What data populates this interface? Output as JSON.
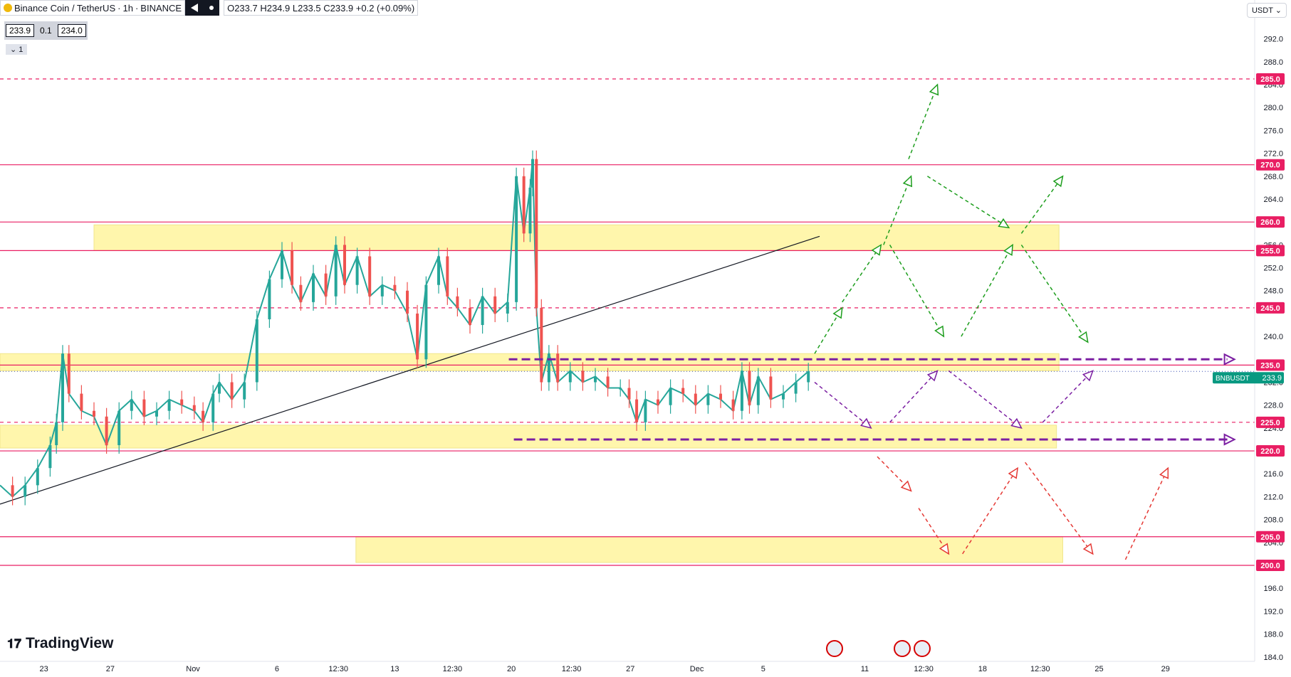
{
  "header": {
    "symbol": "Binance Coin / TetherUS",
    "interval": "1h",
    "exchange": "BINANCE",
    "ohlc": "O233.7 H234.9 L233.5 C233.9 +0.2 (+0.09%)",
    "bid": "233.9",
    "spread": "0.1",
    "ask": "234.0",
    "legend_count": "1",
    "currency": "USDT"
  },
  "logo_text": "TradingView",
  "chart_data": {
    "type": "line",
    "title": "Binance Coin / TetherUS",
    "ylim": [
      184,
      296
    ],
    "y_ticks": [
      "292.0",
      "288.0",
      "284.0",
      "280.0",
      "276.0",
      "272.0",
      "268.0",
      "264.0",
      "256.0",
      "252.0",
      "248.0",
      "240.0",
      "232.0",
      "228.0",
      "224.0",
      "216.0",
      "212.0",
      "208.0",
      "204.0",
      "196.0",
      "192.0",
      "188.0",
      "184.0"
    ],
    "x_ticks": [
      "23",
      "27",
      "Nov",
      "6",
      "12:30",
      "13",
      "12:30",
      "20",
      "12:30",
      "27",
      "Dec",
      "5",
      "11",
      "12:30",
      "18",
      "12:30",
      "25",
      "29"
    ],
    "price_labels": [
      {
        "text": "285.0",
        "value": 285.0,
        "color": "#e91e63"
      },
      {
        "text": "270.0",
        "value": 270.0,
        "color": "#e91e63"
      },
      {
        "text": "260.0",
        "value": 260.0,
        "color": "#e91e63"
      },
      {
        "text": "255.0",
        "value": 255.0,
        "color": "#e91e63"
      },
      {
        "text": "245.0",
        "value": 245.0,
        "color": "#e91e63"
      },
      {
        "text": "235.0",
        "value": 235.0,
        "color": "#e91e63"
      },
      {
        "text": "225.0",
        "value": 225.0,
        "color": "#e91e63"
      },
      {
        "text": "220.0",
        "value": 220.0,
        "color": "#e91e63"
      },
      {
        "text": "205.0",
        "value": 205.0,
        "color": "#e91e63"
      },
      {
        "text": "200.0",
        "value": 200.0,
        "color": "#e91e63"
      }
    ],
    "last_price_label": {
      "symbol": "BNBUSDT",
      "price": "233.9",
      "value": 233.9,
      "color": "#089981"
    },
    "horizontal_lines": [
      {
        "value": 285,
        "style": "dashed"
      },
      {
        "value": 270,
        "style": "solid"
      },
      {
        "value": 260,
        "style": "solid"
      },
      {
        "value": 255,
        "style": "solid"
      },
      {
        "value": 245,
        "style": "dashed"
      },
      {
        "value": 235,
        "style": "solid"
      },
      {
        "value": 225,
        "style": "dashed"
      },
      {
        "value": 220,
        "style": "solid"
      },
      {
        "value": 205,
        "style": "solid"
      },
      {
        "value": 200,
        "style": "solid"
      }
    ],
    "zones": [
      {
        "x0": 0.075,
        "x1": 0.845,
        "y0": 255,
        "y1": 259.5
      },
      {
        "x0": 0,
        "x1": 0.845,
        "y0": 234,
        "y1": 237
      },
      {
        "x0": 0,
        "x1": 0.843,
        "y0": 220.5,
        "y1": 224.5
      },
      {
        "x0": 0.284,
        "x1": 0.848,
        "y0": 200.5,
        "y1": 205
      }
    ],
    "trendline": {
      "x0": 0,
      "y0": 210.7,
      "x1": 0.654,
      "y1": 257.5
    },
    "price_path": [
      [
        0.0,
        214
      ],
      [
        0.01,
        212
      ],
      [
        0.02,
        214
      ],
      [
        0.03,
        217
      ],
      [
        0.04,
        221
      ],
      [
        0.045,
        225
      ],
      [
        0.05,
        237
      ],
      [
        0.055,
        230
      ],
      [
        0.065,
        227
      ],
      [
        0.075,
        226
      ],
      [
        0.085,
        221
      ],
      [
        0.095,
        227
      ],
      [
        0.105,
        229
      ],
      [
        0.115,
        226
      ],
      [
        0.125,
        227
      ],
      [
        0.135,
        229
      ],
      [
        0.145,
        228
      ],
      [
        0.155,
        227
      ],
      [
        0.162,
        225
      ],
      [
        0.17,
        230
      ],
      [
        0.175,
        232
      ],
      [
        0.185,
        229
      ],
      [
        0.195,
        232
      ],
      [
        0.205,
        243
      ],
      [
        0.215,
        250
      ],
      [
        0.225,
        255
      ],
      [
        0.233,
        249
      ],
      [
        0.24,
        246
      ],
      [
        0.25,
        251
      ],
      [
        0.26,
        247
      ],
      [
        0.268,
        256
      ],
      [
        0.275,
        249
      ],
      [
        0.285,
        254
      ],
      [
        0.295,
        247
      ],
      [
        0.305,
        249
      ],
      [
        0.315,
        248
      ],
      [
        0.325,
        244
      ],
      [
        0.333,
        236
      ],
      [
        0.34,
        249
      ],
      [
        0.35,
        254
      ],
      [
        0.357,
        247
      ],
      [
        0.365,
        245
      ],
      [
        0.375,
        242
      ],
      [
        0.385,
        247
      ],
      [
        0.395,
        244
      ],
      [
        0.405,
        246
      ],
      [
        0.412,
        268
      ],
      [
        0.418,
        258
      ],
      [
        0.423,
        266
      ],
      [
        0.425,
        271
      ],
      [
        0.428,
        245
      ],
      [
        0.432,
        232
      ],
      [
        0.438,
        237
      ],
      [
        0.445,
        232
      ],
      [
        0.455,
        234
      ],
      [
        0.465,
        232
      ],
      [
        0.475,
        233
      ],
      [
        0.485,
        231
      ],
      [
        0.495,
        231
      ],
      [
        0.502,
        229
      ],
      [
        0.508,
        225
      ],
      [
        0.515,
        229
      ],
      [
        0.525,
        228
      ],
      [
        0.535,
        231
      ],
      [
        0.545,
        230
      ],
      [
        0.555,
        228
      ],
      [
        0.565,
        230
      ],
      [
        0.575,
        229
      ],
      [
        0.585,
        227
      ],
      [
        0.592,
        234
      ],
      [
        0.598,
        228
      ],
      [
        0.605,
        233
      ],
      [
        0.615,
        229
      ],
      [
        0.625,
        230
      ],
      [
        0.635,
        232
      ],
      [
        0.645,
        233.9
      ]
    ],
    "arrows": [
      {
        "color": "#1e9e1e",
        "pts": [
          [
            0.65,
            237
          ],
          [
            0.672,
            245
          ]
        ]
      },
      {
        "color": "#1e9e1e",
        "pts": [
          [
            0.672,
            246
          ],
          [
            0.703,
            256
          ]
        ]
      },
      {
        "color": "#1e9e1e",
        "pts": [
          [
            0.705,
            256
          ],
          [
            0.727,
            268
          ]
        ]
      },
      {
        "color": "#1e9e1e",
        "pts": [
          [
            0.725,
            271
          ],
          [
            0.748,
            284
          ]
        ]
      },
      {
        "color": "#1e9e1e",
        "pts": [
          [
            0.71,
            256
          ],
          [
            0.753,
            240
          ]
        ]
      },
      {
        "color": "#1e9e1e",
        "pts": [
          [
            0.74,
            268
          ],
          [
            0.805,
            259
          ]
        ]
      },
      {
        "color": "#1e9e1e",
        "pts": [
          [
            0.767,
            240
          ],
          [
            0.808,
            256
          ]
        ]
      },
      {
        "color": "#1e9e1e",
        "pts": [
          [
            0.815,
            258
          ],
          [
            0.848,
            268
          ]
        ]
      },
      {
        "color": "#1e9e1e",
        "pts": [
          [
            0.815,
            256
          ],
          [
            0.868,
            239
          ]
        ]
      },
      {
        "color": "#7b1fa2",
        "pts": [
          [
            0.65,
            232
          ],
          [
            0.695,
            224
          ]
        ]
      },
      {
        "color": "#7b1fa2",
        "pts": [
          [
            0.71,
            225
          ],
          [
            0.748,
            234
          ]
        ]
      },
      {
        "color": "#7b1fa2",
        "pts": [
          [
            0.757,
            234
          ],
          [
            0.815,
            224
          ]
        ]
      },
      {
        "color": "#7b1fa2",
        "pts": [
          [
            0.832,
            225
          ],
          [
            0.872,
            234
          ]
        ]
      },
      {
        "color": "#e53935",
        "pts": [
          [
            0.7,
            219
          ],
          [
            0.727,
            213
          ]
        ]
      },
      {
        "color": "#e53935",
        "pts": [
          [
            0.733,
            210
          ],
          [
            0.757,
            202
          ]
        ]
      },
      {
        "color": "#e53935",
        "pts": [
          [
            0.768,
            202
          ],
          [
            0.812,
            217
          ]
        ]
      },
      {
        "color": "#e53935",
        "pts": [
          [
            0.818,
            218
          ],
          [
            0.872,
            202
          ]
        ]
      },
      {
        "color": "#e53935",
        "pts": [
          [
            0.898,
            201
          ],
          [
            0.932,
            217
          ]
        ]
      }
    ],
    "purple_levels": [
      {
        "value": 236,
        "x0": 0.406,
        "x1": 0.985
      },
      {
        "value": 222,
        "x0": 0.41,
        "x1": 0.985
      }
    ]
  }
}
